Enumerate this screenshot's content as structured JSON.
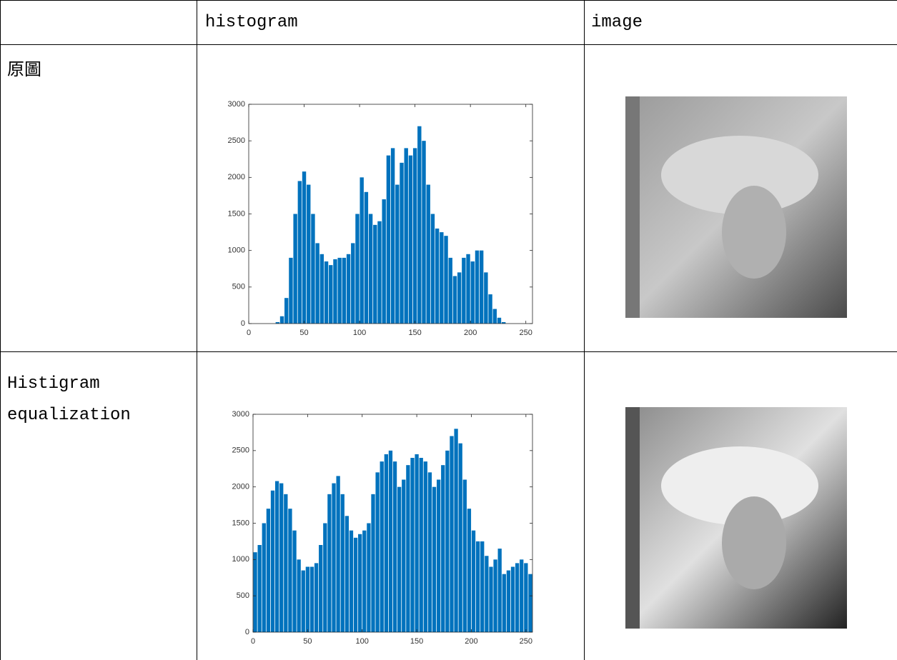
{
  "table": {
    "columns": [
      "histogram",
      "image"
    ],
    "rows": [
      {
        "label": "原圖"
      },
      {
        "label": "Histigram equalization"
      }
    ]
  },
  "chart_data": [
    {
      "type": "histogram",
      "color": "#0072bd",
      "bins": [
        0,
        4,
        8,
        12,
        16,
        20,
        24,
        28,
        32,
        36,
        40,
        44,
        48,
        52,
        56,
        60,
        64,
        68,
        72,
        76,
        80,
        84,
        88,
        92,
        96,
        100,
        104,
        108,
        112,
        116,
        120,
        124,
        128,
        132,
        136,
        140,
        144,
        148,
        152,
        156,
        160,
        164,
        168,
        172,
        176,
        180,
        184,
        188,
        192,
        196,
        200,
        204,
        208,
        212,
        216,
        220,
        224,
        228,
        232,
        236,
        240,
        244,
        248,
        252,
        256
      ],
      "values": [
        0,
        0,
        0,
        0,
        0,
        0,
        20,
        100,
        350,
        900,
        1500,
        1950,
        2080,
        1900,
        1500,
        1100,
        950,
        850,
        800,
        880,
        900,
        900,
        950,
        1100,
        1500,
        2000,
        1800,
        1500,
        1350,
        1400,
        1700,
        2300,
        2400,
        1900,
        2200,
        2400,
        2300,
        2400,
        2700,
        2500,
        1900,
        1500,
        1300,
        1250,
        1200,
        900,
        650,
        700,
        900,
        950,
        850,
        1000,
        1000,
        700,
        400,
        200,
        80,
        20,
        0,
        0,
        0,
        0,
        0,
        0
      ],
      "xlim": [
        0,
        256
      ],
      "ylim": [
        0,
        3000
      ],
      "xticks": [
        0,
        50,
        100,
        150,
        200,
        250
      ],
      "yticks": [
        0,
        500,
        1000,
        1500,
        2000,
        2500,
        3000
      ]
    },
    {
      "type": "histogram",
      "color": "#0072bd",
      "bins": [
        0,
        4,
        8,
        12,
        16,
        20,
        24,
        28,
        32,
        36,
        40,
        44,
        48,
        52,
        56,
        60,
        64,
        68,
        72,
        76,
        80,
        84,
        88,
        92,
        96,
        100,
        104,
        108,
        112,
        116,
        120,
        124,
        128,
        132,
        136,
        140,
        144,
        148,
        152,
        156,
        160,
        164,
        168,
        172,
        176,
        180,
        184,
        188,
        192,
        196,
        200,
        204,
        208,
        212,
        216,
        220,
        224,
        228,
        232,
        236,
        240,
        244,
        248,
        252,
        256
      ],
      "values": [
        1100,
        1200,
        1500,
        1700,
        1950,
        2080,
        2050,
        1900,
        1700,
        1400,
        1000,
        850,
        900,
        900,
        950,
        1200,
        1500,
        1900,
        2050,
        2150,
        1900,
        1600,
        1400,
        1300,
        1350,
        1400,
        1500,
        1900,
        2200,
        2350,
        2450,
        2500,
        2350,
        2000,
        2100,
        2300,
        2400,
        2450,
        2400,
        2350,
        2200,
        2000,
        2100,
        2300,
        2500,
        2700,
        2800,
        2600,
        2100,
        1700,
        1400,
        1250,
        1250,
        1050,
        900,
        1000,
        1150,
        800,
        850,
        900,
        950,
        1000,
        950,
        800
      ],
      "xlim": [
        0,
        256
      ],
      "ylim": [
        0,
        3000
      ],
      "xticks": [
        0,
        50,
        100,
        150,
        200,
        250
      ],
      "yticks": [
        0,
        500,
        1000,
        1500,
        2000,
        2500,
        3000
      ]
    }
  ]
}
